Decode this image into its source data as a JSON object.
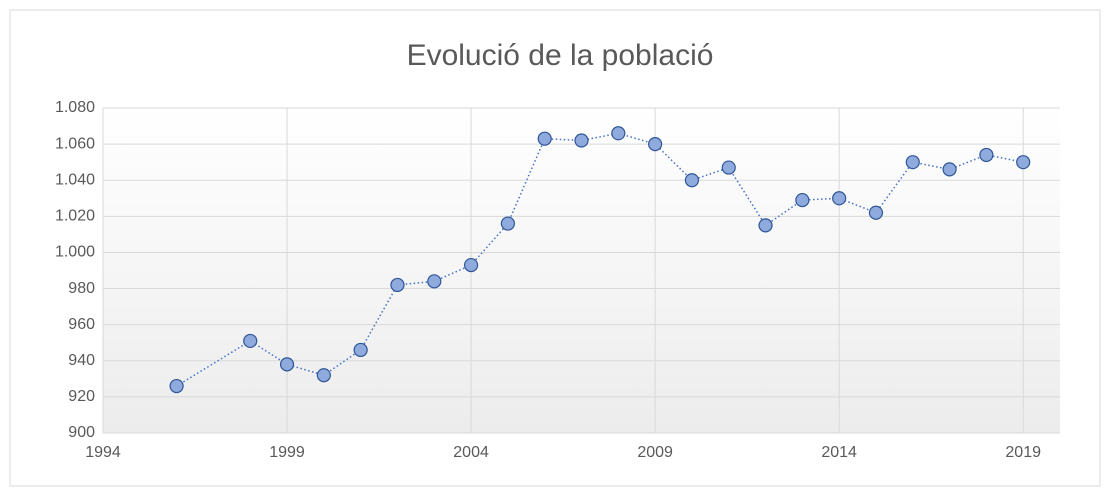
{
  "chart_data": {
    "type": "line",
    "title": "Evolució de la població",
    "x": [
      1996,
      1998,
      1999,
      2000,
      2001,
      2002,
      2003,
      2004,
      2005,
      2006,
      2007,
      2008,
      2009,
      2010,
      2011,
      2012,
      2013,
      2014,
      2015,
      2016,
      2017,
      2018,
      2019
    ],
    "values": [
      926,
      951,
      938,
      932,
      946,
      982,
      984,
      993,
      1016,
      1063,
      1062,
      1066,
      1060,
      1040,
      1047,
      1015,
      1029,
      1030,
      1022,
      1050,
      1046,
      1054,
      1050
    ],
    "color": "#4472c4",
    "xlim": [
      1994,
      2020
    ],
    "xticks": [
      1994,
      1999,
      2004,
      2009,
      2014,
      2019
    ],
    "ylim": [
      900,
      1080
    ],
    "yticks": [
      900,
      920,
      940,
      960,
      980,
      {
        "value": 1000,
        "label": "1.000"
      },
      {
        "value": 1020,
        "label": "1.020"
      },
      {
        "value": 1040,
        "label": "1.040"
      },
      {
        "value": 1060,
        "label": "1.060"
      },
      {
        "value": 1080,
        "label": "1.080"
      }
    ],
    "grid": true
  }
}
